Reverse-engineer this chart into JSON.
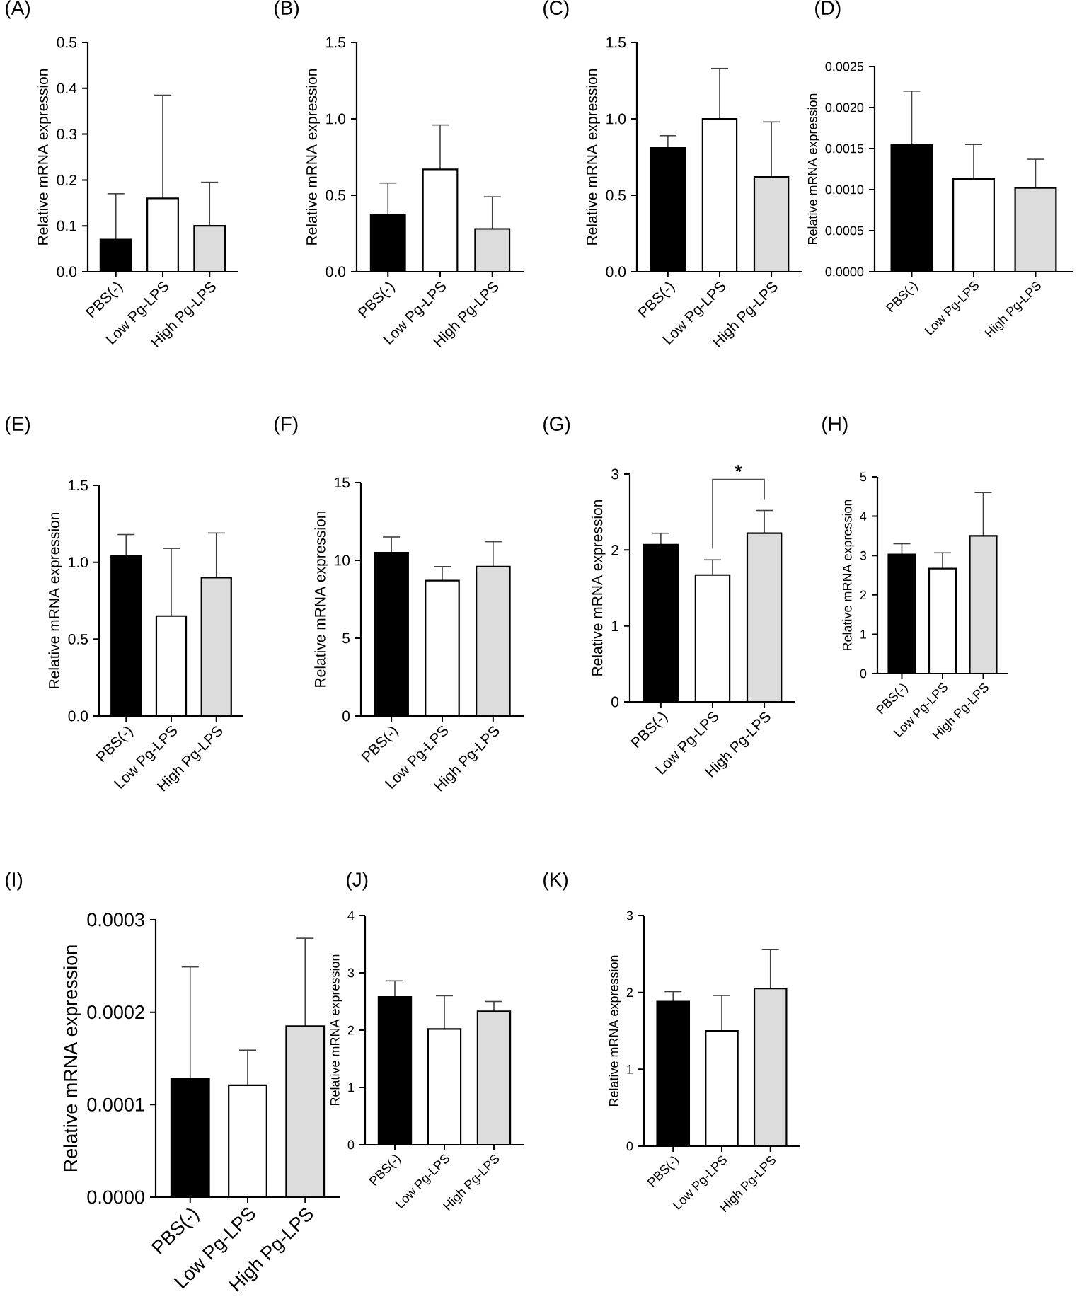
{
  "chart_data": [
    {
      "type": "bar",
      "title": "(A)",
      "ylabel": "Relative mRNA expression",
      "categories": [
        "PBS(-)",
        "Low Pg-LPS",
        "High Pg-LPS"
      ],
      "values": [
        0.07,
        0.16,
        0.1
      ],
      "errors": [
        [
          0.07,
          0.17
        ],
        [
          0.16,
          0.385
        ],
        [
          0.1,
          0.195
        ]
      ],
      "colors": [
        "#000000",
        "#ffffff",
        "#dcdcdc"
      ],
      "ylim": [
        0,
        0.5
      ],
      "yticks": [
        {
          "value": 0,
          "label": "0.0"
        },
        {
          "value": 0.1,
          "label": "0.1"
        },
        {
          "value": 0.2,
          "label": "0.2"
        },
        {
          "value": 0.3,
          "label": "0.3"
        },
        {
          "value": 0.4,
          "label": "0.4"
        },
        {
          "value": 0.5,
          "label": "0.5"
        }
      ]
    },
    {
      "type": "bar",
      "title": "(B)",
      "ylabel": "Relative mRNA expression",
      "categories": [
        "PBS(-)",
        "Low Pg-LPS",
        "High Pg-LPS"
      ],
      "values": [
        0.37,
        0.67,
        0.28
      ],
      "errors": [
        [
          0.37,
          0.58
        ],
        [
          0.67,
          0.96
        ],
        [
          0.28,
          0.49
        ]
      ],
      "colors": [
        "#000000",
        "#ffffff",
        "#dcdcdc"
      ],
      "ylim": [
        0,
        1.5
      ],
      "yticks": [
        {
          "value": 0,
          "label": "0.0"
        },
        {
          "value": 0.5,
          "label": "0.5"
        },
        {
          "value": 1,
          "label": "1.0"
        },
        {
          "value": 1.5,
          "label": "1.5"
        }
      ]
    },
    {
      "type": "bar",
      "title": "(C)",
      "ylabel": "Relative mRNA expression",
      "categories": [
        "PBS(-)",
        "Low Pg-LPS",
        "High Pg-LPS"
      ],
      "values": [
        0.81,
        1.0,
        0.62
      ],
      "errors": [
        [
          0.81,
          0.89
        ],
        [
          1.0,
          1.33
        ],
        [
          0.62,
          0.98
        ]
      ],
      "colors": [
        "#000000",
        "#ffffff",
        "#dcdcdc"
      ],
      "ylim": [
        0,
        1.5
      ],
      "yticks": [
        {
          "value": 0,
          "label": "0.0"
        },
        {
          "value": 0.5,
          "label": "0.5"
        },
        {
          "value": 1,
          "label": "1.0"
        },
        {
          "value": 1.5,
          "label": "1.5"
        }
      ]
    },
    {
      "type": "bar",
      "title": "(D)",
      "ylabel": "Relative mRNA expression",
      "categories": [
        "PBS(-)",
        "Low Pg-LPS",
        "High Pg-LPS"
      ],
      "values": [
        0.00155,
        0.00113,
        0.00102
      ],
      "errors": [
        [
          0.00155,
          0.0022
        ],
        [
          0.00113,
          0.00155
        ],
        [
          0.00102,
          0.00137
        ]
      ],
      "colors": [
        "#000000",
        "#ffffff",
        "#dcdcdc"
      ],
      "ylim": [
        0,
        0.0025
      ],
      "yticks": [
        {
          "value": 0,
          "label": "0.0000"
        },
        {
          "value": 0.0005,
          "label": "0.0005"
        },
        {
          "value": 0.001,
          "label": "0.0010"
        },
        {
          "value": 0.0015,
          "label": "0.0015"
        },
        {
          "value": 0.002,
          "label": "0.0020"
        },
        {
          "value": 0.0025,
          "label": "0.0025"
        }
      ]
    },
    {
      "type": "bar",
      "title": "(E)",
      "ylabel": "Relative mRNA expression",
      "categories": [
        "PBS(-)",
        "Low Pg-LPS",
        "High Pg-LPS"
      ],
      "values": [
        1.04,
        0.65,
        0.9
      ],
      "errors": [
        [
          1.04,
          1.18
        ],
        [
          0.65,
          1.09
        ],
        [
          0.9,
          1.19
        ]
      ],
      "colors": [
        "#000000",
        "#ffffff",
        "#dcdcdc"
      ],
      "ylim": [
        0,
        1.5
      ],
      "yticks": [
        {
          "value": 0,
          "label": "0.0"
        },
        {
          "value": 0.5,
          "label": "0.5"
        },
        {
          "value": 1,
          "label": "1.0"
        },
        {
          "value": 1.5,
          "label": "1.5"
        }
      ]
    },
    {
      "type": "bar",
      "title": "(F)",
      "ylabel": "Relative mRNA expression",
      "categories": [
        "PBS(-)",
        "Low Pg-LPS",
        "High Pg-LPS"
      ],
      "values": [
        10.5,
        8.7,
        9.6
      ],
      "errors": [
        [
          10.5,
          11.5
        ],
        [
          8.7,
          9.6
        ],
        [
          9.6,
          11.2
        ]
      ],
      "colors": [
        "#000000",
        "#ffffff",
        "#dcdcdc"
      ],
      "ylim": [
        0,
        15
      ],
      "yticks": [
        0,
        5,
        10,
        15
      ]
    },
    {
      "type": "bar",
      "title": "(G)",
      "ylabel": "Relative mRNA expression",
      "categories": [
        "PBS(-)",
        "Low Pg-LPS",
        "High Pg-LPS"
      ],
      "values": [
        2.07,
        1.67,
        2.22
      ],
      "errors": [
        [
          2.07,
          2.22
        ],
        [
          1.67,
          1.87
        ],
        [
          2.22,
          2.52
        ]
      ],
      "colors": [
        "#000000",
        "#ffffff",
        "#dcdcdc"
      ],
      "ylim": [
        0,
        3
      ],
      "yticks": [
        0,
        1,
        2,
        3
      ],
      "annotations": [
        "*"
      ]
    },
    {
      "type": "bar",
      "title": "(H)",
      "ylabel": "Relative mRNA expression",
      "categories": [
        "PBS(-)",
        "Low Pg-LPS",
        "High Pg-LPS"
      ],
      "values": [
        3.03,
        2.67,
        3.5
      ],
      "errors": [
        [
          3.03,
          3.3
        ],
        [
          2.67,
          3.07
        ],
        [
          3.5,
          4.6
        ]
      ],
      "colors": [
        "#000000",
        "#ffffff",
        "#dcdcdc"
      ],
      "ylim": [
        0,
        5
      ],
      "yticks": [
        0,
        1,
        2,
        3,
        4,
        5
      ]
    },
    {
      "type": "bar",
      "title": "(I)",
      "ylabel": "Relative mRNA expression",
      "categories": [
        "PBS(-)",
        "Low Pg-LPS",
        "High Pg-LPS"
      ],
      "values": [
        0.000128,
        0.000121,
        0.000185
      ],
      "errors": [
        [
          0.000128,
          0.000249
        ],
        [
          0.000121,
          0.000159
        ],
        [
          0.000185,
          0.00028
        ]
      ],
      "colors": [
        "#000000",
        "#ffffff",
        "#dcdcdc"
      ],
      "ylim": [
        0,
        0.0003
      ],
      "yticks": [
        {
          "value": 0,
          "label": "0.0000"
        },
        {
          "value": 0.0001,
          "label": "0.0001"
        },
        {
          "value": 0.0002,
          "label": "0.0002"
        },
        {
          "value": 0.0003,
          "label": "0.0003"
        }
      ]
    },
    {
      "type": "bar",
      "title": "(J)",
      "ylabel": "Relative mRNA expression",
      "categories": [
        "PBS(-)",
        "Low Pg-LPS",
        "High Pg-LPS"
      ],
      "values": [
        2.58,
        2.02,
        2.33
      ],
      "errors": [
        [
          2.58,
          2.86
        ],
        [
          2.02,
          2.6
        ],
        [
          2.33,
          2.5
        ]
      ],
      "colors": [
        "#000000",
        "#ffffff",
        "#dcdcdc"
      ],
      "ylim": [
        0,
        4
      ],
      "yticks": [
        0,
        1,
        2,
        3,
        4
      ]
    },
    {
      "type": "bar",
      "title": "(K)",
      "ylabel": "Relative mRNA expression",
      "categories": [
        "PBS(-)",
        "Low Pg-LPS",
        "High Pg-LPS"
      ],
      "values": [
        1.88,
        1.5,
        2.05
      ],
      "errors": [
        [
          1.88,
          2.01
        ],
        [
          1.5,
          1.96
        ],
        [
          2.05,
          2.56
        ]
      ],
      "colors": [
        "#000000",
        "#ffffff",
        "#dcdcdc"
      ],
      "ylim": [
        0,
        3
      ],
      "yticks": [
        0,
        1,
        2,
        3
      ]
    }
  ]
}
